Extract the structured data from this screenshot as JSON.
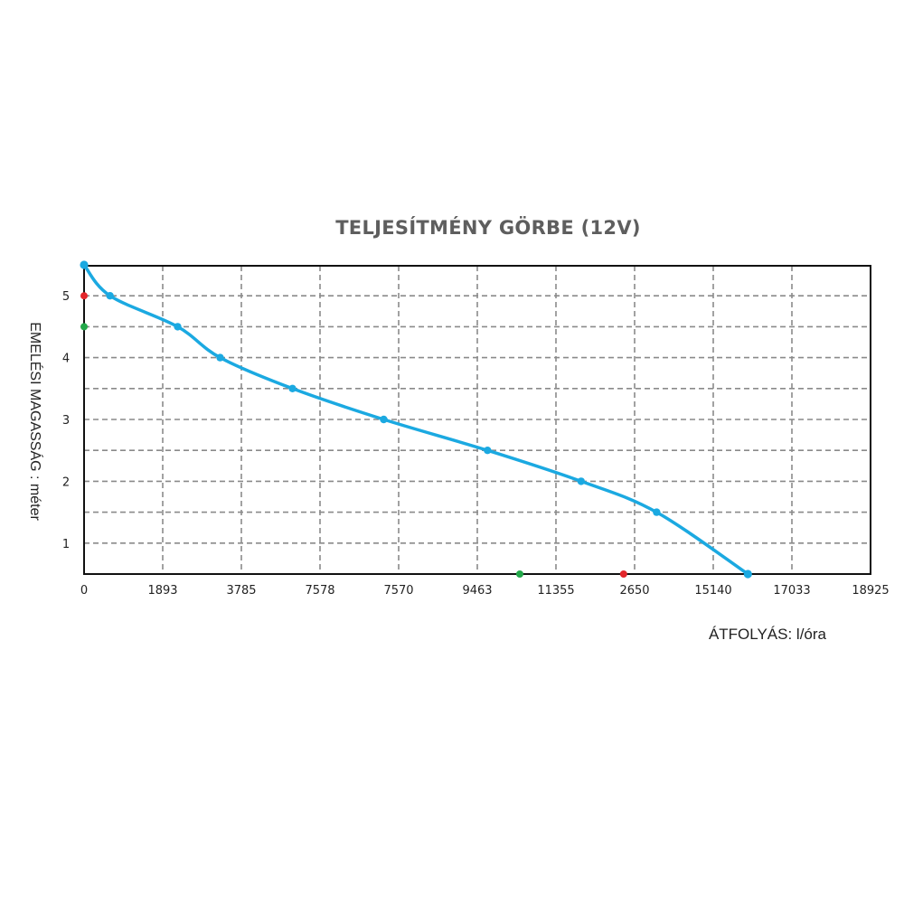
{
  "colors": {
    "curve": "#1ba9e1",
    "grid": "#8a8a8a",
    "axis": "#111111",
    "marker_red": "#e3262b",
    "marker_green": "#23a84a",
    "title": "#5e5e5e"
  },
  "chart_data": {
    "type": "line",
    "title": "TELJESÍTMÉNY GÖRBE (12V)",
    "xlabel": "ÁTFOLYÁS: l/óra",
    "ylabel": "EMELÉSI MAGASSÁG : méter",
    "x_tick_labels": [
      "0",
      "1893",
      "3785",
      "7578",
      "7570",
      "9463",
      "11355",
      "2650",
      "15140",
      "17033",
      "18925"
    ],
    "y_tick_labels": [
      "1",
      "2",
      "3",
      "4",
      "5"
    ],
    "xlim": [
      0,
      10
    ],
    "ylim": [
      0.5,
      5.5
    ],
    "grid": true,
    "series": [
      {
        "values": [
          {
            "x": 0,
            "y": 5.5
          },
          {
            "x": 0.33,
            "y": 5.0
          },
          {
            "x": 1.19,
            "y": 4.5
          },
          {
            "x": 1.73,
            "y": 4.0
          },
          {
            "x": 2.65,
            "y": 3.5
          },
          {
            "x": 3.81,
            "y": 3.0
          },
          {
            "x": 5.13,
            "y": 2.5
          },
          {
            "x": 6.32,
            "y": 2.0
          },
          {
            "x": 7.28,
            "y": 1.5
          },
          {
            "x": 8.44,
            "y": 0.5
          }
        ]
      }
    ],
    "markers": [
      {
        "x": 0,
        "y": 5.0,
        "color": "red"
      },
      {
        "x": 0,
        "y": 4.5,
        "color": "green"
      },
      {
        "x": 5.54,
        "y": 0.5,
        "color": "green"
      },
      {
        "x": 6.86,
        "y": 0.5,
        "color": "red"
      }
    ]
  }
}
